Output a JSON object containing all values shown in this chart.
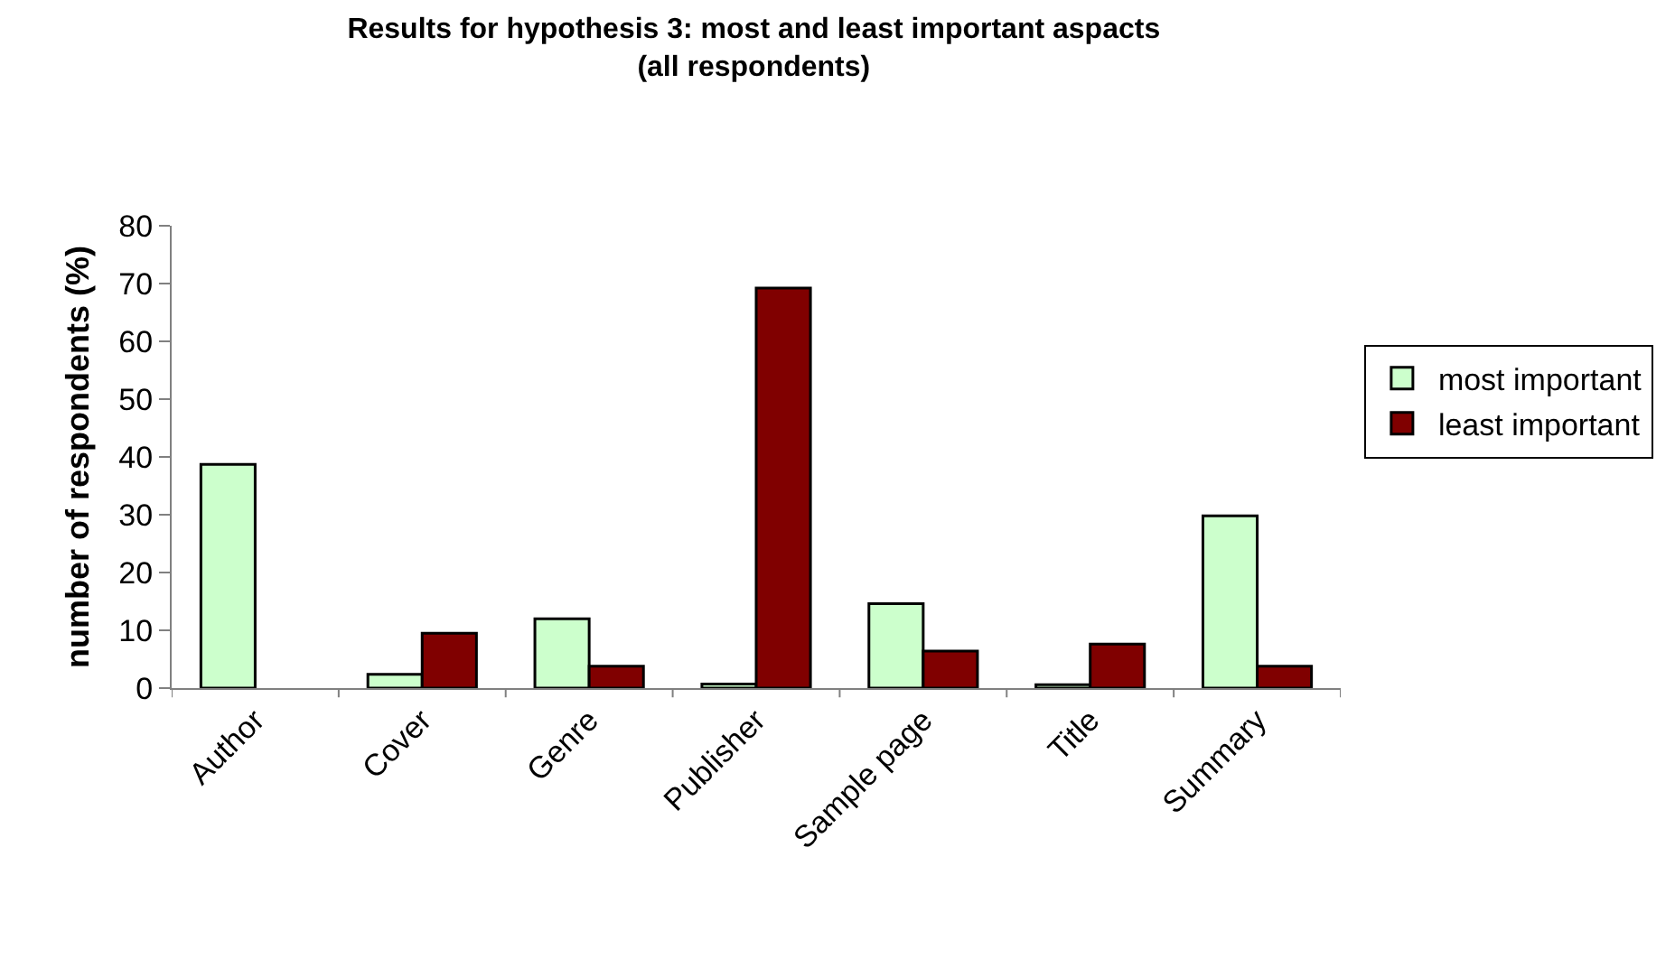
{
  "chart_data": {
    "type": "bar",
    "title": "Results for hypothesis 3: most and least important aspacts (all respondents)",
    "ylabel": "number of respondents (%)",
    "categories": [
      "Author",
      "Cover",
      "Genre",
      "Publisher",
      "Sample page",
      "Title",
      "Summary"
    ],
    "series": [
      {
        "name": "most important",
        "color": "#ccffcc",
        "values": [
          38.7,
          2.4,
          12.0,
          0.7,
          14.6,
          0.6,
          29.8
        ]
      },
      {
        "name": "least important",
        "color": "#800000",
        "values": [
          null,
          9.5,
          3.8,
          69.2,
          6.4,
          7.6,
          3.8
        ]
      }
    ],
    "ylim": [
      0,
      80
    ],
    "yticks": [
      0,
      10,
      20,
      30,
      40,
      50,
      60,
      70,
      80
    ],
    "grid": false,
    "legend": "right"
  }
}
